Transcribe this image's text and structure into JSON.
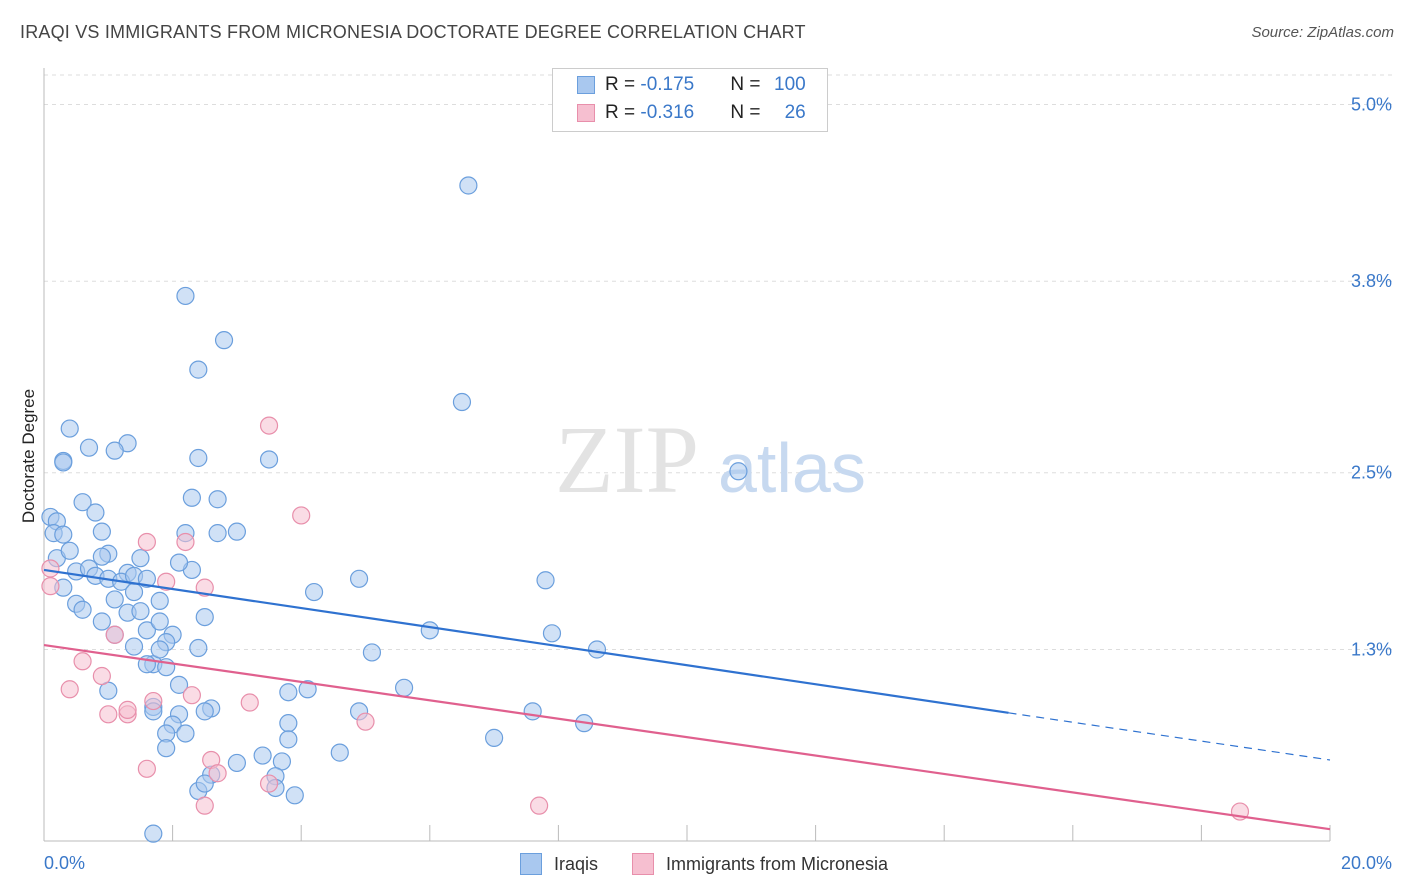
{
  "title": "IRAQI VS IMMIGRANTS FROM MICRONESIA DOCTORATE DEGREE CORRELATION CHART",
  "source": "Source: ZipAtlas.com",
  "watermark": {
    "zip": "ZIP",
    "atlas": "atlas"
  },
  "legend": {
    "iraqis": {
      "r_label": "R = ",
      "r_value": "-0.175",
      "n_label": "N = ",
      "n_value": "100"
    },
    "micronesia": {
      "r_label": "R = ",
      "r_value": "-0.316",
      "n_label": "N = ",
      "n_value": "26"
    }
  },
  "bottom_legend": {
    "iraqis": "Iraqis",
    "micronesia": "Immigrants from Micronesia"
  },
  "colors": {
    "blue_fill": "#a9c8ef",
    "blue_stroke": "#6b9fdd",
    "blue_line": "#2f72d0",
    "pink_fill": "#f6bfd0",
    "pink_stroke": "#e88fab",
    "pink_line": "#e0608e",
    "tick_text": "#3a78c9"
  },
  "chart_data": {
    "type": "scatter",
    "title": "IRAQI VS IMMIGRANTS FROM MICRONESIA DOCTORATE DEGREE CORRELATION CHART",
    "xlabel": "",
    "ylabel": "Doctorate Degree",
    "xlim": [
      0,
      20
    ],
    "ylim": [
      0,
      5.2
    ],
    "x_tick_labels": [
      "0.0%",
      "20.0%"
    ],
    "y_ticks": [
      1.3,
      2.5,
      3.8,
      5.0
    ],
    "y_tick_labels": [
      "1.3%",
      "2.5%",
      "3.8%",
      "5.0%"
    ],
    "grid": true,
    "series": [
      {
        "name": "Iraqis",
        "r": -0.175,
        "n": 100,
        "trend": {
          "x": [
            0,
            15
          ],
          "y": [
            1.84,
            0.87
          ],
          "dashed_to": [
            20,
            0.55
          ]
        },
        "points": [
          [
            0.1,
            2.2
          ],
          [
            0.2,
            2.17
          ],
          [
            0.15,
            2.09
          ],
          [
            0.3,
            2.08
          ],
          [
            0.2,
            1.92
          ],
          [
            0.3,
            1.72
          ],
          [
            0.4,
            1.97
          ],
          [
            0.5,
            1.83
          ],
          [
            0.4,
            2.8
          ],
          [
            0.3,
            2.58
          ],
          [
            0.3,
            2.57
          ],
          [
            0.6,
            2.3
          ],
          [
            0.7,
            2.67
          ],
          [
            0.9,
            2.1
          ],
          [
            1.3,
            2.7
          ],
          [
            1.1,
            2.65
          ],
          [
            0.8,
            2.23
          ],
          [
            1.0,
            1.95
          ],
          [
            0.9,
            1.93
          ],
          [
            0.7,
            1.85
          ],
          [
            0.8,
            1.8
          ],
          [
            0.5,
            1.61
          ],
          [
            0.6,
            1.57
          ],
          [
            0.9,
            1.49
          ],
          [
            1.1,
            1.64
          ],
          [
            1.3,
            1.82
          ],
          [
            1.0,
            1.78
          ],
          [
            1.2,
            1.76
          ],
          [
            1.4,
            1.8
          ],
          [
            1.5,
            1.92
          ],
          [
            1.4,
            1.69
          ],
          [
            1.6,
            1.78
          ],
          [
            1.3,
            1.55
          ],
          [
            1.5,
            1.56
          ],
          [
            1.6,
            1.43
          ],
          [
            1.8,
            1.63
          ],
          [
            2.0,
            1.4
          ],
          [
            1.8,
            1.49
          ],
          [
            1.9,
            1.35
          ],
          [
            1.7,
            1.2
          ],
          [
            1.6,
            1.2
          ],
          [
            1.8,
            1.3
          ],
          [
            1.9,
            1.18
          ],
          [
            1.4,
            1.32
          ],
          [
            1.1,
            1.4
          ],
          [
            1.0,
            1.02
          ],
          [
            1.7,
            0.91
          ],
          [
            2.1,
            1.06
          ],
          [
            2.4,
            1.31
          ],
          [
            2.5,
            1.52
          ],
          [
            2.3,
            1.84
          ],
          [
            2.2,
            2.09
          ],
          [
            2.1,
            1.89
          ],
          [
            2.7,
            2.09
          ],
          [
            3.0,
            2.1
          ],
          [
            2.7,
            2.32
          ],
          [
            2.3,
            2.33
          ],
          [
            2.4,
            2.6
          ],
          [
            2.8,
            3.4
          ],
          [
            2.4,
            3.2
          ],
          [
            2.2,
            3.7
          ],
          [
            3.5,
            2.59
          ],
          [
            4.2,
            1.69
          ],
          [
            4.9,
            1.78
          ],
          [
            3.8,
            1.01
          ],
          [
            4.1,
            1.03
          ],
          [
            5.1,
            1.28
          ],
          [
            5.6,
            1.04
          ],
          [
            6.0,
            1.43
          ],
          [
            6.5,
            2.98
          ],
          [
            6.6,
            4.45
          ],
          [
            7.0,
            0.7
          ],
          [
            7.6,
            0.88
          ],
          [
            7.8,
            1.77
          ],
          [
            7.9,
            1.41
          ],
          [
            8.6,
            1.3
          ],
          [
            10.8,
            2.51
          ],
          [
            8.4,
            0.8
          ],
          [
            2.1,
            0.86
          ],
          [
            2.6,
            0.9
          ],
          [
            2.5,
            0.88
          ],
          [
            2.0,
            0.79
          ],
          [
            1.9,
            0.73
          ],
          [
            2.2,
            0.73
          ],
          [
            2.4,
            0.34
          ],
          [
            2.6,
            0.45
          ],
          [
            3.0,
            0.53
          ],
          [
            3.4,
            0.58
          ],
          [
            3.7,
            0.54
          ],
          [
            3.6,
            0.44
          ],
          [
            3.6,
            0.36
          ],
          [
            3.9,
            0.31
          ],
          [
            3.8,
            0.8
          ],
          [
            4.9,
            0.88
          ],
          [
            4.6,
            0.6
          ],
          [
            1.7,
            0.05
          ],
          [
            3.8,
            0.69
          ],
          [
            2.5,
            0.39
          ],
          [
            1.9,
            0.63
          ],
          [
            1.7,
            0.88
          ]
        ]
      },
      {
        "name": "Immigrants from Micronesia",
        "r": -0.316,
        "n": 26,
        "trend": {
          "x": [
            0,
            20
          ],
          "y": [
            1.33,
            0.08
          ]
        },
        "points": [
          [
            0.1,
            1.73
          ],
          [
            0.1,
            1.85
          ],
          [
            0.4,
            1.03
          ],
          [
            0.6,
            1.22
          ],
          [
            0.9,
            1.12
          ],
          [
            1.0,
            0.86
          ],
          [
            1.1,
            1.4
          ],
          [
            1.3,
            0.86
          ],
          [
            1.3,
            0.89
          ],
          [
            1.6,
            2.03
          ],
          [
            1.7,
            0.95
          ],
          [
            1.9,
            1.76
          ],
          [
            2.2,
            2.03
          ],
          [
            2.3,
            0.99
          ],
          [
            2.5,
            1.72
          ],
          [
            2.6,
            0.55
          ],
          [
            2.7,
            0.46
          ],
          [
            3.2,
            0.94
          ],
          [
            3.5,
            0.39
          ],
          [
            3.5,
            2.82
          ],
          [
            4.0,
            2.21
          ],
          [
            1.6,
            0.49
          ],
          [
            2.5,
            0.24
          ],
          [
            5.0,
            0.81
          ],
          [
            7.7,
            0.24
          ],
          [
            18.6,
            0.2
          ]
        ]
      }
    ]
  }
}
